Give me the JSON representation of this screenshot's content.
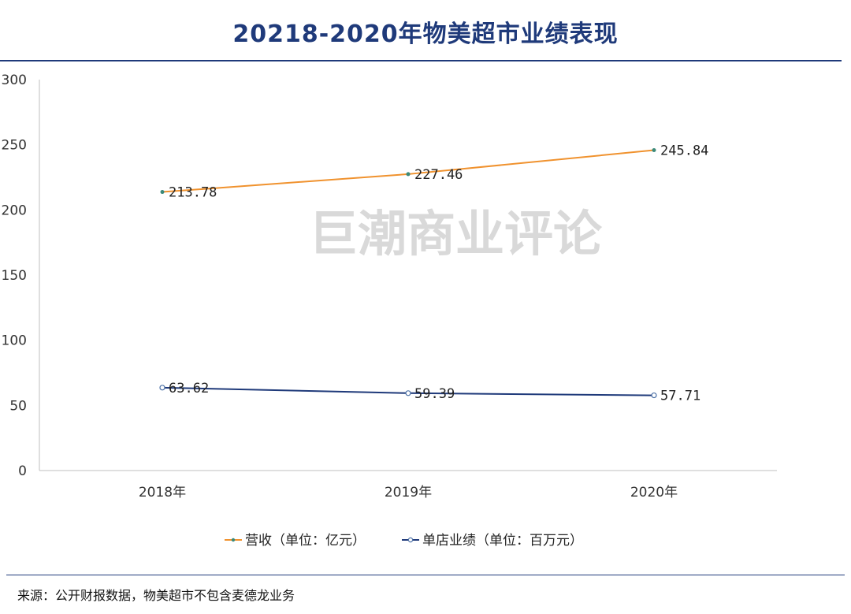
{
  "header": {
    "title": "20218-2020年物美超市业绩表现"
  },
  "watermark": "巨潮商业评论",
  "footer": {
    "source": "来源：公开财报数据，物美超市不包含麦德龙业务"
  },
  "colors": {
    "revenue": "#f0922e",
    "store": "#1f3a7a",
    "title": "#1f3a7a",
    "axis": "#bfbfbf"
  },
  "chart_data": {
    "type": "line",
    "categories": [
      "2018年",
      "2019年",
      "2020年"
    ],
    "ylim": [
      0,
      300
    ],
    "yticks": [
      0,
      50,
      100,
      150,
      200,
      250,
      300
    ],
    "grid": false,
    "legend": "bottom",
    "series": [
      {
        "name": "营收（单位：亿元）",
        "values": [
          213.78,
          227.46,
          245.84
        ],
        "labels": [
          "213.78",
          "227.46",
          "245.84"
        ]
      },
      {
        "name": "单店业绩（单位：百万元）",
        "values": [
          63.62,
          59.39,
          57.71
        ],
        "labels": [
          "63.62",
          "59.39",
          "57.71"
        ]
      }
    ]
  }
}
